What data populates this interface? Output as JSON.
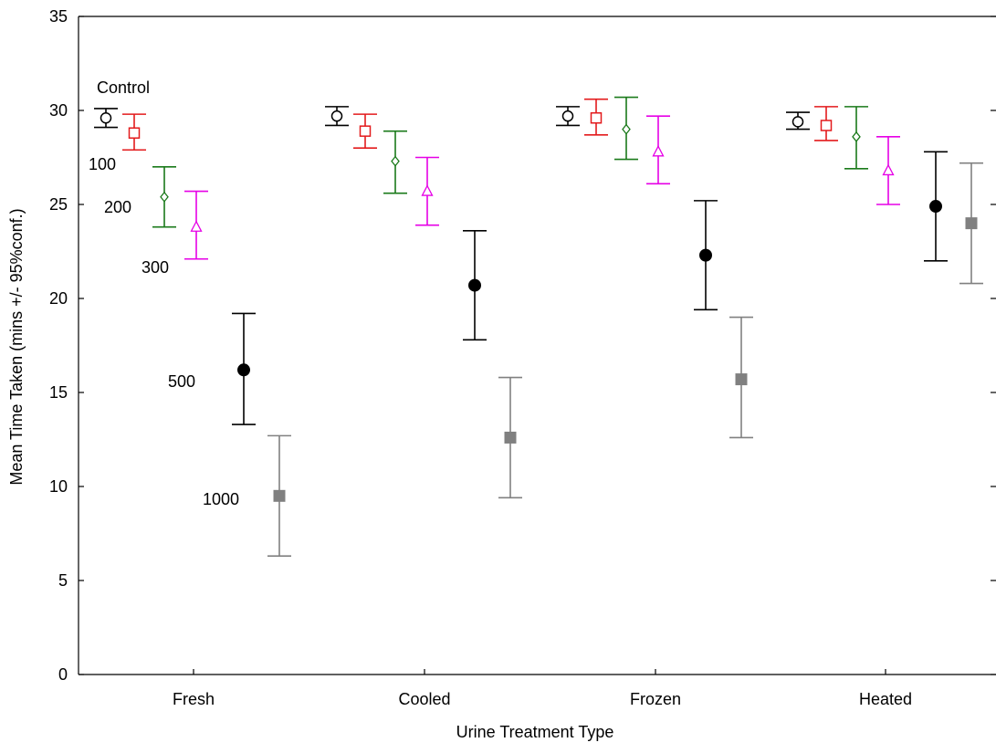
{
  "chart_data": {
    "type": "scatter",
    "subtype": "error-bar",
    "title": "",
    "xlabel": "Urine Treatment Type",
    "ylabel": "Mean Time Taken (mins +/- 95%conf.)",
    "categories": [
      "Fresh",
      "Cooled",
      "Frozen",
      "Heated"
    ],
    "ylim": [
      0,
      35
    ],
    "yticks": [
      0,
      5,
      10,
      15,
      20,
      25,
      30,
      35
    ],
    "grid": false,
    "series": [
      {
        "label": "Control",
        "color": "#000000",
        "marker": "circle-open",
        "values": [
          29.6,
          29.7,
          29.7,
          29.4
        ],
        "lower": [
          29.1,
          29.2,
          29.2,
          29.0
        ],
        "upper": [
          30.1,
          30.2,
          30.2,
          29.9
        ]
      },
      {
        "label": "100",
        "color": "#e31a1c",
        "marker": "square-open",
        "values": [
          28.8,
          28.9,
          29.6,
          29.2
        ],
        "lower": [
          27.9,
          28.0,
          28.7,
          28.4
        ],
        "upper": [
          29.8,
          29.8,
          30.6,
          30.2
        ]
      },
      {
        "label": "200",
        "color": "#1a7a1a",
        "marker": "diamond-open",
        "values": [
          25.4,
          27.3,
          29.0,
          28.6
        ],
        "lower": [
          23.8,
          25.6,
          27.4,
          26.9
        ],
        "upper": [
          27.0,
          28.9,
          30.7,
          30.2
        ]
      },
      {
        "label": "300",
        "color": "#e600e6",
        "marker": "triangle-open",
        "values": [
          23.8,
          25.7,
          27.8,
          26.8
        ],
        "lower": [
          22.1,
          23.9,
          26.1,
          25.0
        ],
        "upper": [
          25.7,
          27.5,
          29.7,
          28.6
        ]
      },
      {
        "label": "500",
        "color": "#000000",
        "marker": "circle-filled",
        "values": [
          16.2,
          20.7,
          22.3,
          24.9
        ],
        "lower": [
          13.3,
          17.8,
          19.4,
          22.0
        ],
        "upper": [
          19.2,
          23.6,
          25.2,
          27.8
        ]
      },
      {
        "label": "1000",
        "color": "#808080",
        "marker": "square-filled",
        "values": [
          9.5,
          12.6,
          15.7,
          24.0
        ],
        "lower": [
          6.3,
          9.4,
          12.6,
          20.8
        ],
        "upper": [
          12.7,
          15.8,
          19.0,
          27.2
        ]
      }
    ]
  }
}
